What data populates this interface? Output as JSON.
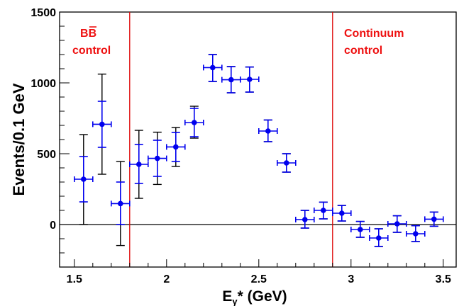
{
  "chart_data": {
    "type": "scatter",
    "xlabel_main": "E",
    "xlabel_sub": "γ",
    "xlabel_rest": "* (GeV)",
    "ylabel": "Events/0.1 GeV",
    "xlim": [
      1.42,
      3.57
    ],
    "ylim": [
      -300,
      1500
    ],
    "x_ticks": [
      1.5,
      2,
      2.5,
      3,
      3.5
    ],
    "x_tick_labels": [
      "1.5",
      "2",
      "2.5",
      "3",
      "3.5"
    ],
    "y_ticks": [
      0,
      500,
      1000,
      1500
    ],
    "y_tick_labels": [
      "0",
      "500",
      "1000",
      "1500"
    ],
    "grid": false,
    "zero_line": 0,
    "colors": {
      "points": "#0000ee",
      "stat_error": "#0000ee",
      "total_error": "#000000",
      "control_lines": "#dd0000",
      "annotation_text": "#ee1111"
    },
    "control_lines_x": [
      1.8,
      2.9
    ],
    "annotations": {
      "bb_control_line1_base": "BB",
      "bb_control_line2": "control",
      "continuum_line1": "Continuum",
      "continuum_line2": "control"
    },
    "points": [
      {
        "x": 1.55,
        "y": 320,
        "xerr": 0.05,
        "stat": [
          160,
          480
        ],
        "total": [
          0,
          635
        ]
      },
      {
        "x": 1.65,
        "y": 708,
        "xerr": 0.05,
        "stat": [
          545,
          870
        ],
        "total": [
          355,
          1062
        ]
      },
      {
        "x": 1.75,
        "y": 148,
        "xerr": 0.05,
        "stat": [
          0,
          300
        ],
        "total": [
          -148,
          445
        ]
      },
      {
        "x": 1.85,
        "y": 425,
        "xerr": 0.05,
        "stat": [
          290,
          565
        ],
        "total": [
          185,
          665
        ]
      },
      {
        "x": 1.95,
        "y": 467,
        "xerr": 0.05,
        "stat": [
          340,
          595
        ],
        "total": [
          283,
          652
        ]
      },
      {
        "x": 2.05,
        "y": 548,
        "xerr": 0.05,
        "stat": [
          445,
          650
        ],
        "total": [
          410,
          685
        ]
      },
      {
        "x": 2.15,
        "y": 720,
        "xerr": 0.05,
        "stat": [
          620,
          820
        ],
        "total": [
          610,
          835
        ]
      },
      {
        "x": 2.25,
        "y": 1108,
        "xerr": 0.05,
        "stat": [
          1010,
          1200
        ],
        "total": [
          1010,
          1200
        ]
      },
      {
        "x": 2.35,
        "y": 1022,
        "xerr": 0.05,
        "stat": [
          930,
          1115
        ],
        "total": [
          930,
          1115
        ]
      },
      {
        "x": 2.45,
        "y": 1025,
        "xerr": 0.05,
        "stat": [
          935,
          1112
        ],
        "total": [
          935,
          1112
        ]
      },
      {
        "x": 2.55,
        "y": 660,
        "xerr": 0.05,
        "stat": [
          585,
          738
        ],
        "total": [
          585,
          738
        ]
      },
      {
        "x": 2.65,
        "y": 435,
        "xerr": 0.05,
        "stat": [
          370,
          500
        ],
        "total": [
          370,
          500
        ]
      },
      {
        "x": 2.75,
        "y": 35,
        "xerr": 0.05,
        "stat": [
          -25,
          100
        ],
        "total": [
          -25,
          100
        ]
      },
      {
        "x": 2.85,
        "y": 100,
        "xerr": 0.05,
        "stat": [
          40,
          158
        ],
        "total": [
          40,
          158
        ]
      },
      {
        "x": 2.95,
        "y": 80,
        "xerr": 0.05,
        "stat": [
          25,
          135
        ],
        "total": [
          25,
          135
        ]
      },
      {
        "x": 3.05,
        "y": -35,
        "xerr": 0.05,
        "stat": [
          -90,
          22
        ],
        "total": [
          -90,
          22
        ]
      },
      {
        "x": 3.15,
        "y": -95,
        "xerr": 0.05,
        "stat": [
          -155,
          -30
        ],
        "total": [
          -155,
          -30
        ]
      },
      {
        "x": 3.25,
        "y": 5,
        "xerr": 0.05,
        "stat": [
          -55,
          62
        ],
        "total": [
          -55,
          62
        ]
      },
      {
        "x": 3.35,
        "y": -65,
        "xerr": 0.05,
        "stat": [
          -120,
          -8
        ],
        "total": [
          -120,
          -8
        ]
      },
      {
        "x": 3.45,
        "y": 38,
        "xerr": 0.05,
        "stat": [
          -12,
          88
        ],
        "total": [
          -12,
          88
        ]
      }
    ]
  }
}
